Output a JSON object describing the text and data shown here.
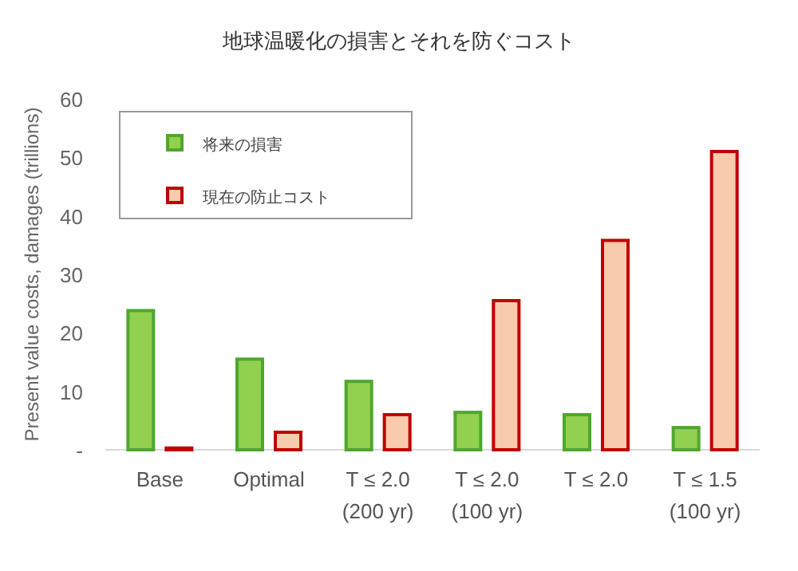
{
  "chart_data": {
    "type": "bar",
    "title": "地球温暖化の損害とそれを防ぐコスト",
    "ylabel": "Present value costs, damages (trillions)",
    "categories": [
      "Base",
      "Optimal",
      "T ≤ 2.0 (200 yr)",
      "T ≤ 2.0 (100 yr)",
      "T ≤ 2.0",
      "T ≤ 1.5 (100 yr)"
    ],
    "series": [
      {
        "name": "将来の損害",
        "color": "#92d050",
        "values": [
          23.8,
          15.5,
          11.7,
          6.4,
          6.0,
          3.8
        ]
      },
      {
        "name": "現在の防止コスト",
        "color": "#f8cbad",
        "values": [
          0.3,
          3.0,
          6.0,
          25.5,
          35.8,
          51.0
        ]
      }
    ],
    "ylim": [
      0,
      60
    ],
    "yticks": [
      {
        "value": 0,
        "label": "-"
      },
      10,
      20,
      30,
      40,
      50,
      60
    ],
    "legend": "top left",
    "grid": false
  }
}
